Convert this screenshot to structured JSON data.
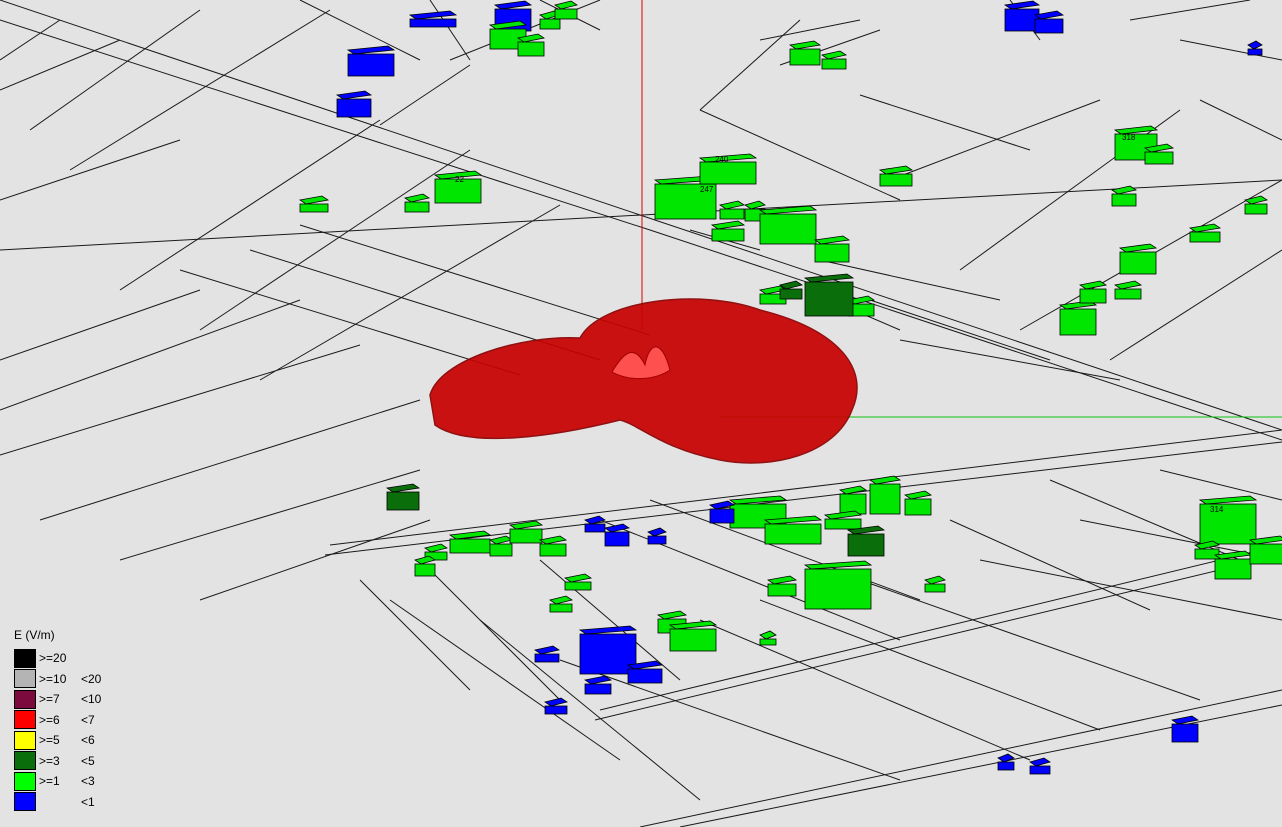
{
  "map": {
    "background": "#e3e3e3",
    "road_color": "#1a1a1a",
    "building_colors": {
      "below_1": "#0000ff",
      "from_1_to_3": "#00e600",
      "from_3_to_5": "#0a6e0a"
    },
    "field_pattern_color": "#c80000",
    "axis_colors": {
      "vertical": "#d40000",
      "horizontal": "#10c010"
    },
    "building_labels": [
      "247",
      "240",
      "22",
      "318",
      "314"
    ]
  },
  "legend": {
    "title": "E (V/m)",
    "items": [
      {
        "color": "#000000",
        "lower": ">=20",
        "upper": ""
      },
      {
        "color": "#b4b4b4",
        "lower": ">=10",
        "upper": "<20"
      },
      {
        "color": "#7c0a3c",
        "lower": ">=7",
        "upper": "<10"
      },
      {
        "color": "#ff0000",
        "lower": ">=6",
        "upper": "<7"
      },
      {
        "color": "#ffff00",
        "lower": ">=5",
        "upper": "<6"
      },
      {
        "color": "#0a6e0a",
        "lower": ">=3",
        "upper": "<5"
      },
      {
        "color": "#00ff00",
        "lower": ">=1",
        "upper": "<3"
      },
      {
        "color": "#0000ff",
        "lower": "",
        "upper": "<1"
      }
    ]
  }
}
